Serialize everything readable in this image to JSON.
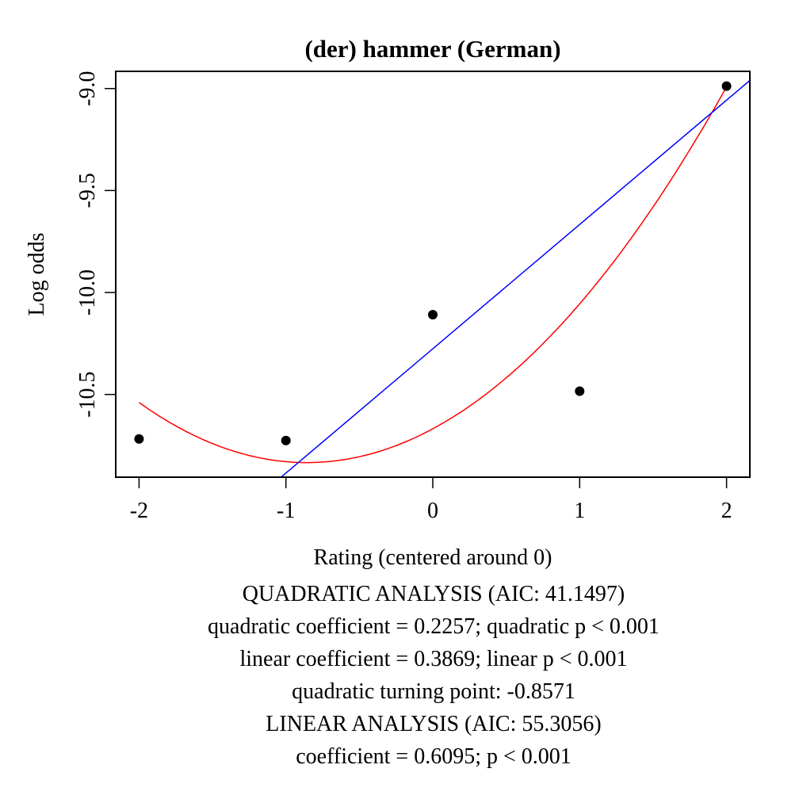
{
  "chart_data": {
    "type": "scatter",
    "title": "(der) hammer (German)",
    "xlabel": "Rating (centered around 0)",
    "ylabel": "Log odds",
    "xlim": [
      -2.16,
      2.16
    ],
    "ylim": [
      -10.905,
      -8.915
    ],
    "x_ticks": [
      -2,
      -1,
      0,
      1,
      2
    ],
    "x_tick_labels": [
      "-2",
      "-1",
      "0",
      "1",
      "2"
    ],
    "y_ticks": [
      -9.0,
      -9.5,
      -10.0,
      -10.5
    ],
    "y_tick_labels": [
      "-9.0",
      "-9.5",
      "-10.0",
      "-10.5"
    ],
    "grid": false,
    "legend": null,
    "points": {
      "x": [
        -2,
        -1,
        0,
        1,
        2
      ],
      "y": [
        -10.718,
        -10.726,
        -10.109,
        -10.484,
        -8.988
      ],
      "color": "#000000"
    },
    "series": [
      {
        "name": "quadratic fit",
        "type": "line",
        "color": "#ff0000",
        "x_range": [
          -2,
          2
        ],
        "quadratic_coefficient": 0.2257,
        "turning_point": -0.8571,
        "min_value": -10.834
      },
      {
        "name": "linear fit",
        "type": "line",
        "color": "#0000ff",
        "slope": 0.6095,
        "intercept": -10.276
      }
    ],
    "annotations": [
      "QUADRATIC ANALYSIS (AIC: 41.1497)",
      "quadratic coefficient = 0.2257; quadratic p < 0.001",
      "linear coefficient = 0.3869; linear p < 0.001",
      "quadratic turning point: -0.8571",
      "LINEAR ANALYSIS (AIC: 55.3056)",
      "coefficient = 0.6095; p < 0.001"
    ]
  }
}
